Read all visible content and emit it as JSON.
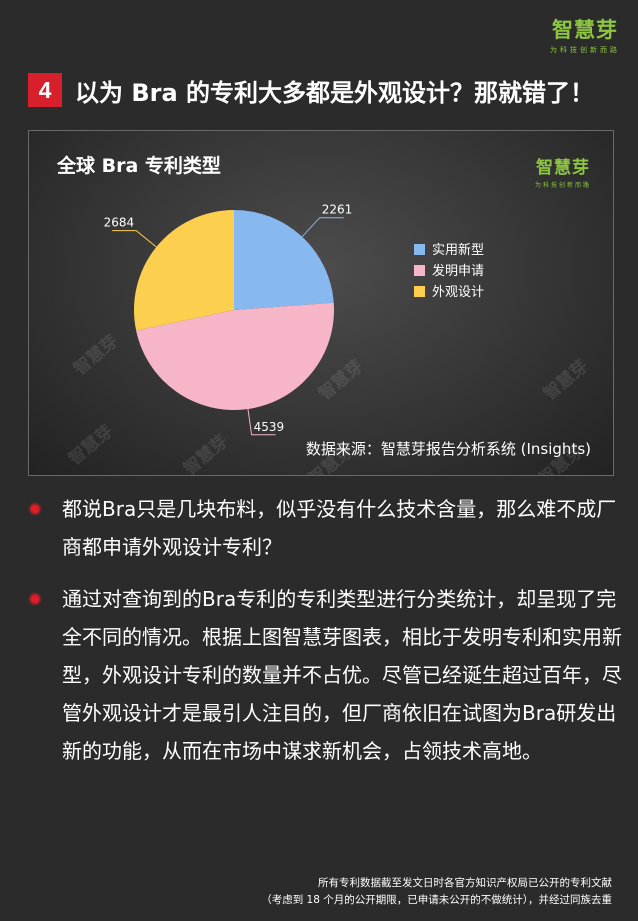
{
  "brand": {
    "logo": "智慧芽",
    "slogan": "为科技创新而路"
  },
  "heading": {
    "number": "4",
    "text": "以为 Bra 的专利大多都是外观设计？那就错了！"
  },
  "chart_panel": {
    "brand_logo": "智慧芽",
    "brand_slogan": "为科技创新而路",
    "watermark_text": "智慧芽",
    "source": "数据来源：智慧芽报告分析系统 (Insights)"
  },
  "chart_data": {
    "type": "pie",
    "title": "全球 Bra 专利类型",
    "slices": [
      {
        "name": "实用新型",
        "value": 2261,
        "color": "#87b8f0"
      },
      {
        "name": "发明申请",
        "value": 4539,
        "color": "#f6b6c8"
      },
      {
        "name": "外观设计",
        "value": 2684,
        "color": "#fdcf4f"
      }
    ],
    "legend_position": "right"
  },
  "bullets": [
    "都说Bra只是几块布料，似乎没有什么技术含量，那么难不成厂商都申请外观设计专利？",
    "通过对查询到的Bra专利的专利类型进行分类统计，却呈现了完全不同的情况。根据上图智慧芽图表，相比于发明专利和实用新型，外观设计专利的数量并不占优。尽管已经诞生超过百年，尽管外观设计才是最引人注目的，但厂商依旧在试图为Bra研发出新的功能，从而在市场中谋求新机会，占领技术高地。"
  ],
  "footnote": {
    "line1": "所有专利数据截至发文日时各官方知识产权局已公开的专利文献",
    "line2": "（考虑到 18 个月的公开期限，已申请未公开的不做统计），并经过同族去重"
  }
}
